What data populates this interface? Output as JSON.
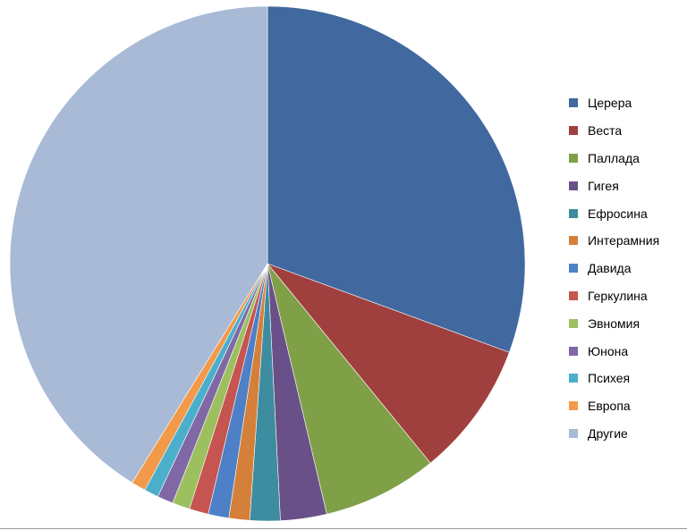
{
  "chart_data": {
    "type": "pie",
    "title": "",
    "start_angle_deg": 0,
    "direction": "clockwise",
    "legend_position": "right",
    "slices": [
      {
        "label": "Церера",
        "value": 30.6,
        "color": "#4169A0"
      },
      {
        "label": "Веста",
        "value": 8.5,
        "color": "#A0403E"
      },
      {
        "label": "Паллада",
        "value": 7.2,
        "color": "#80A048"
      },
      {
        "label": "Гигея",
        "value": 2.9,
        "color": "#6A5088"
      },
      {
        "label": "Ефросина",
        "value": 1.9,
        "color": "#3D8CA0"
      },
      {
        "label": "Интерамния",
        "value": 1.3,
        "color": "#D5803A"
      },
      {
        "label": "Давида",
        "value": 1.3,
        "color": "#4D80C6"
      },
      {
        "label": "Геркулина",
        "value": 1.2,
        "color": "#C65450"
      },
      {
        "label": "Эвномия",
        "value": 1.1,
        "color": "#9CC05E"
      },
      {
        "label": "Юнона",
        "value": 1.0,
        "color": "#8068A6"
      },
      {
        "label": "Психея",
        "value": 0.9,
        "color": "#4BAFCB"
      },
      {
        "label": "Европа",
        "value": 0.9,
        "color": "#F2994A"
      },
      {
        "label": "Другие",
        "value": 41.2,
        "color": "#A9BAD6"
      }
    ]
  }
}
